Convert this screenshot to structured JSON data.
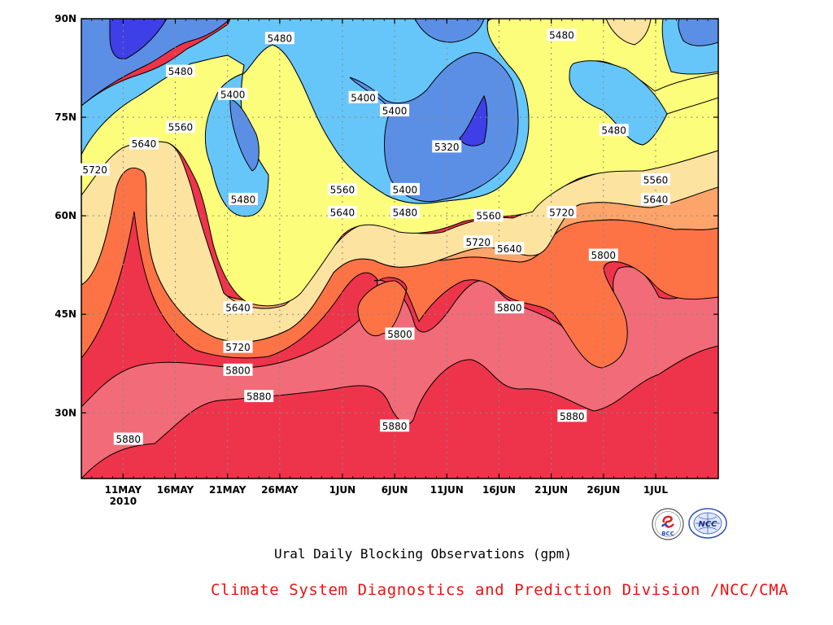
{
  "chart_data": {
    "type": "contour",
    "caption": "Ural Daily Blocking Observations (gpm)",
    "credit": "Climate System Diagnostics and Prediction Division /NCC/CMA",
    "x_ticks": [
      {
        "label": "11MAY",
        "sub": "2010",
        "day": 11
      },
      {
        "label": "16MAY",
        "day": 16
      },
      {
        "label": "21MAY",
        "day": 21
      },
      {
        "label": "26MAY",
        "day": 26
      },
      {
        "label": "1JUN",
        "day": 32
      },
      {
        "label": "6JUN",
        "day": 37
      },
      {
        "label": "11JUN",
        "day": 42
      },
      {
        "label": "16JUN",
        "day": 47
      },
      {
        "label": "21JUN",
        "day": 52
      },
      {
        "label": "26JUN",
        "day": 57
      },
      {
        "label": "1JUL",
        "day": 62
      }
    ],
    "y_ticks": [
      {
        "label": "30N",
        "lat": 30
      },
      {
        "label": "45N",
        "lat": 45
      },
      {
        "label": "60N",
        "lat": 60
      },
      {
        "label": "75N",
        "lat": 75
      },
      {
        "label": "90N",
        "lat": 90
      }
    ],
    "x_range_days": [
      7,
      68
    ],
    "y_range_lat": [
      20,
      90
    ],
    "grid": "dotted",
    "levels": [
      5320,
      5400,
      5480,
      5560,
      5640,
      5720,
      5800,
      5880
    ],
    "colors": {
      "below_5320": "#3f3fe8",
      "5320_5400": "#5b8fe6",
      "5400_5480": "#66c6fa",
      "5480_5560": "#fdfd7c",
      "5560_5640": "#fde3a0",
      "5640_5720": "#fda46a",
      "5720_5800": "#fd7345",
      "5800_5880": "#f26b78",
      "above_5880": "#ee344a"
    },
    "contour_labels": [
      {
        "text": "5880",
        "day": 11.5,
        "lat": 26
      },
      {
        "text": "5880",
        "day": 24,
        "lat": 32.5
      },
      {
        "text": "5880",
        "day": 37,
        "lat": 28
      },
      {
        "text": "5880",
        "day": 54,
        "lat": 29.5
      },
      {
        "text": "5800",
        "day": 22,
        "lat": 36.5
      },
      {
        "text": "5800",
        "day": 37.5,
        "lat": 42
      },
      {
        "text": "5800",
        "day": 48,
        "lat": 46
      },
      {
        "text": "5800",
        "day": 57,
        "lat": 54
      },
      {
        "text": "5720",
        "day": 8.3,
        "lat": 67
      },
      {
        "text": "5720",
        "day": 22,
        "lat": 40
      },
      {
        "text": "5720",
        "day": 45,
        "lat": 56
      },
      {
        "text": "5720",
        "day": 53,
        "lat": 60.5
      },
      {
        "text": "5640",
        "day": 13,
        "lat": 71
      },
      {
        "text": "5640",
        "day": 22,
        "lat": 46
      },
      {
        "text": "5640",
        "day": 32,
        "lat": 60.5
      },
      {
        "text": "5640",
        "day": 48,
        "lat": 55
      },
      {
        "text": "5640",
        "day": 62,
        "lat": 62.5
      },
      {
        "text": "5560",
        "day": 16.5,
        "lat": 73.5
      },
      {
        "text": "5560",
        "day": 32,
        "lat": 64
      },
      {
        "text": "5560",
        "day": 46,
        "lat": 60
      },
      {
        "text": "5560",
        "day": 62,
        "lat": 65.5
      },
      {
        "text": "5480",
        "day": 16.5,
        "lat": 82
      },
      {
        "text": "5480",
        "day": 26,
        "lat": 87
      },
      {
        "text": "5480",
        "day": 22.5,
        "lat": 62.5
      },
      {
        "text": "5480",
        "day": 38,
        "lat": 60.5
      },
      {
        "text": "5480",
        "day": 53,
        "lat": 87.5
      },
      {
        "text": "5480",
        "day": 58,
        "lat": 73
      },
      {
        "text": "5400",
        "day": 21.5,
        "lat": 78.5
      },
      {
        "text": "5400",
        "day": 34,
        "lat": 78
      },
      {
        "text": "5400",
        "day": 37,
        "lat": 76
      },
      {
        "text": "5400",
        "day": 38,
        "lat": 64
      },
      {
        "text": "5320",
        "day": 42,
        "lat": 70.5
      }
    ]
  },
  "logos": [
    {
      "name": "BCC",
      "text": "BCC"
    },
    {
      "name": "NCC",
      "text": "NCC"
    }
  ]
}
